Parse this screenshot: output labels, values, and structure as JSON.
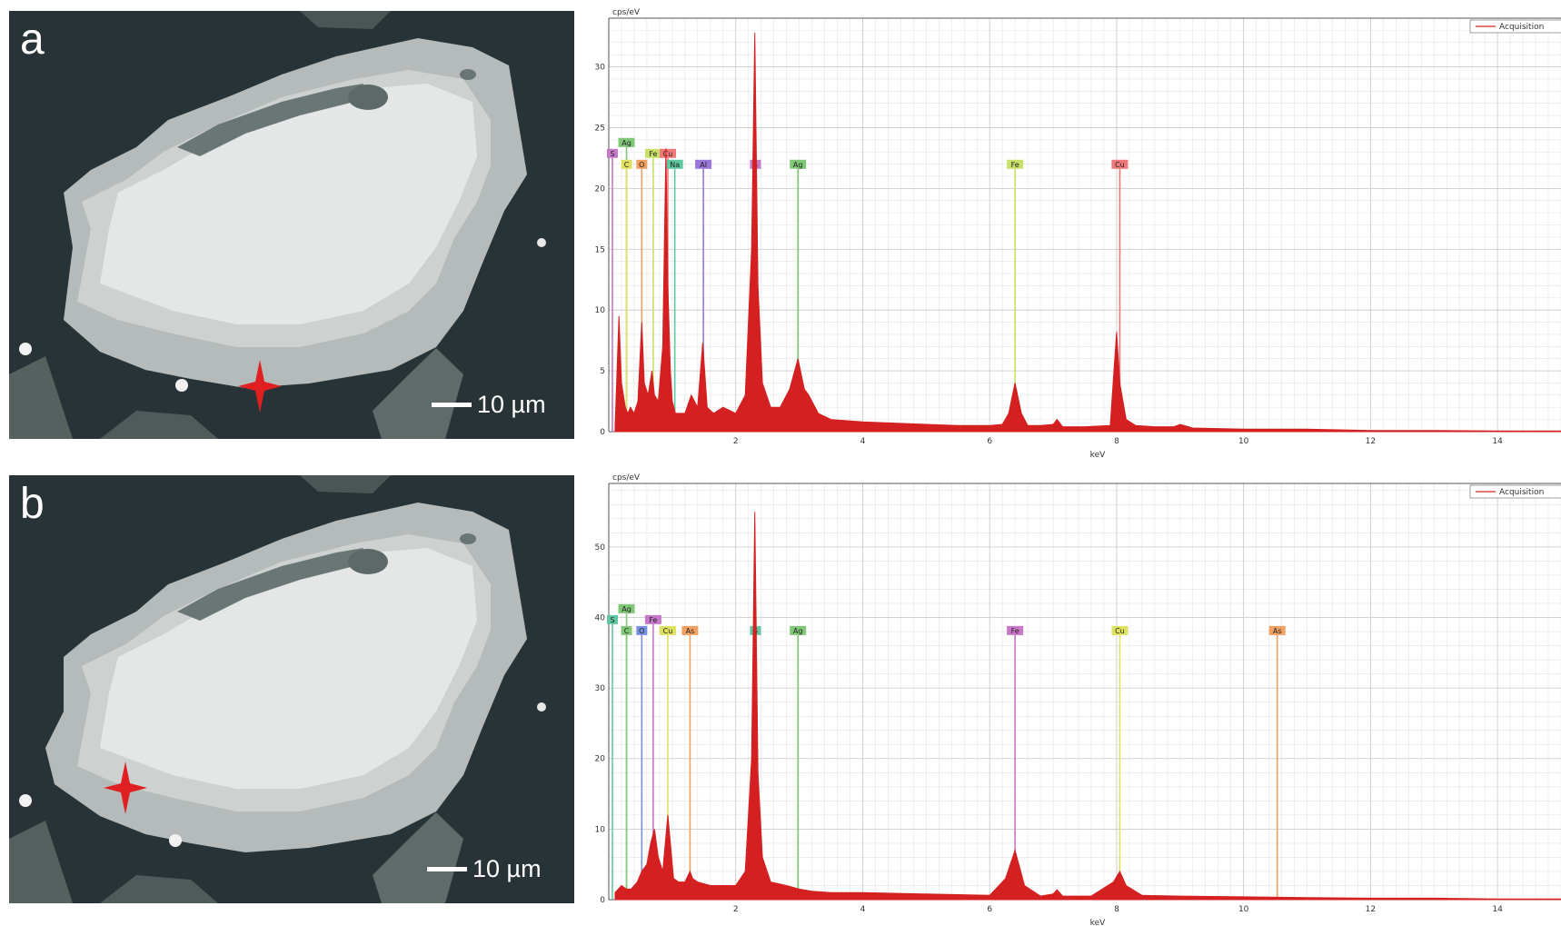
{
  "panels": [
    {
      "letter": "a",
      "scale_bar": "10 µm",
      "marker": "red-star"
    },
    {
      "letter": "b",
      "scale_bar": "10 µm",
      "marker": "red-star"
    }
  ],
  "chart_data": [
    {
      "type": "line",
      "title": "",
      "xlabel": "keV",
      "ylabel": "cps/eV",
      "xlim": [
        0,
        15
      ],
      "ylim": [
        0,
        34
      ],
      "xticks": [
        2,
        4,
        6,
        8,
        10,
        12,
        14
      ],
      "yticks": [
        0,
        5,
        10,
        15,
        20,
        25,
        30
      ],
      "grid": true,
      "legend": {
        "position": "top-right",
        "entries": [
          "Acquisition"
        ]
      },
      "series": [
        {
          "name": "Acquisition",
          "color": "#d42020",
          "x": [
            0.1,
            0.16,
            0.2,
            0.26,
            0.3,
            0.34,
            0.4,
            0.46,
            0.52,
            0.56,
            0.62,
            0.68,
            0.72,
            0.78,
            0.85,
            0.9,
            0.93,
            0.97,
            1.0,
            1.05,
            1.1,
            1.2,
            1.3,
            1.4,
            1.48,
            1.55,
            1.65,
            1.8,
            2.0,
            2.15,
            2.25,
            2.3,
            2.35,
            2.42,
            2.55,
            2.7,
            2.85,
            2.98,
            3.08,
            3.15,
            3.3,
            3.5,
            4.0,
            4.5,
            5.0,
            5.5,
            6.0,
            6.2,
            6.3,
            6.4,
            6.5,
            6.6,
            6.8,
            7.0,
            7.06,
            7.15,
            7.5,
            7.9,
            8.0,
            8.05,
            8.15,
            8.3,
            8.6,
            8.9,
            9.0,
            9.2,
            10.0,
            11.0,
            12.0,
            13.0,
            14.0,
            15.0
          ],
          "y": [
            0.5,
            9.5,
            4.0,
            2.0,
            1.5,
            2.0,
            1.5,
            2.5,
            9.0,
            4.0,
            3.0,
            5.0,
            3.0,
            2.5,
            7.0,
            23.3,
            12.0,
            5.0,
            2.5,
            1.5,
            1.5,
            1.5,
            3.0,
            2.0,
            7.3,
            2.0,
            1.5,
            2.0,
            1.5,
            3.0,
            15.0,
            32.8,
            12.0,
            4.0,
            2.0,
            2.0,
            3.5,
            6.0,
            3.5,
            3.0,
            1.5,
            1.0,
            0.8,
            0.7,
            0.6,
            0.5,
            0.5,
            0.6,
            1.5,
            4.0,
            1.5,
            0.5,
            0.5,
            0.6,
            1.0,
            0.4,
            0.4,
            0.5,
            8.2,
            4.0,
            1.0,
            0.5,
            0.4,
            0.4,
            0.6,
            0.3,
            0.2,
            0.2,
            0.1,
            0.1,
            0.05,
            0.05
          ]
        }
      ],
      "element_markers": [
        {
          "label": "S",
          "x": 0.0,
          "color": "#c878c8",
          "row": 2
        },
        {
          "label": "Ag",
          "x": 0.28,
          "color": "#80c878",
          "row": 1
        },
        {
          "label": "C",
          "x": 0.28,
          "color": "#e0e060",
          "row": 3
        },
        {
          "label": "O",
          "x": 0.52,
          "color": "#f0a060",
          "row": 3
        },
        {
          "label": "Fe",
          "x": 0.7,
          "color": "#c8e068",
          "row": 2
        },
        {
          "label": "Cu",
          "x": 0.93,
          "color": "#f07878",
          "row": 2
        },
        {
          "label": "Na",
          "x": 1.04,
          "color": "#60c8a0",
          "row": 3
        },
        {
          "label": "Al",
          "x": 1.49,
          "color": "#9878d8",
          "row": 3
        },
        {
          "label": "S",
          "x": 2.31,
          "color": "#c878c8",
          "row": 3
        },
        {
          "label": "Ag",
          "x": 2.98,
          "color": "#80c878",
          "row": 3
        },
        {
          "label": "Fe",
          "x": 6.4,
          "color": "#c8e068",
          "row": 3
        },
        {
          "label": "Cu",
          "x": 8.05,
          "color": "#f07878",
          "row": 3
        }
      ]
    },
    {
      "type": "line",
      "title": "",
      "xlabel": "keV",
      "ylabel": "cps/eV",
      "xlim": [
        0,
        15
      ],
      "ylim": [
        0,
        59
      ],
      "xticks": [
        2,
        4,
        6,
        8,
        10,
        12,
        14
      ],
      "yticks": [
        0,
        10,
        20,
        30,
        40,
        50
      ],
      "grid": true,
      "legend": {
        "position": "top-right",
        "entries": [
          "Acquisition"
        ]
      },
      "series": [
        {
          "name": "Acquisition",
          "color": "#d42020",
          "x": [
            0.1,
            0.2,
            0.28,
            0.35,
            0.45,
            0.52,
            0.6,
            0.66,
            0.72,
            0.78,
            0.85,
            0.93,
            0.97,
            1.02,
            1.1,
            1.2,
            1.28,
            1.32,
            1.4,
            1.6,
            1.8,
            2.0,
            2.15,
            2.25,
            2.3,
            2.35,
            2.42,
            2.55,
            2.8,
            3.0,
            3.2,
            3.5,
            4.0,
            5.0,
            6.0,
            6.25,
            6.4,
            6.55,
            6.8,
            7.0,
            7.06,
            7.15,
            7.6,
            7.95,
            8.05,
            8.15,
            8.4,
            9.0,
            10.0,
            11.0,
            12.0,
            13.0,
            14.0,
            15.0
          ],
          "y": [
            1.0,
            2.0,
            1.5,
            1.5,
            2.5,
            4.0,
            5.0,
            8.0,
            10.0,
            6.0,
            4.0,
            12.0,
            8.0,
            3.0,
            2.5,
            2.5,
            4.0,
            3.0,
            2.5,
            2.0,
            2.0,
            2.0,
            4.0,
            20.0,
            55.0,
            18.0,
            6.0,
            2.5,
            2.0,
            1.5,
            1.2,
            1.0,
            1.0,
            0.8,
            0.6,
            3.0,
            7.0,
            2.0,
            0.5,
            0.8,
            1.4,
            0.5,
            0.5,
            2.5,
            4.0,
            2.0,
            0.6,
            0.5,
            0.4,
            0.3,
            0.2,
            0.2,
            0.1,
            0.1
          ]
        }
      ],
      "element_markers": [
        {
          "label": "S",
          "x": 0.0,
          "color": "#60c8a0",
          "row": 2
        },
        {
          "label": "Ag",
          "x": 0.28,
          "color": "#80c878",
          "row": 1
        },
        {
          "label": "C",
          "x": 0.28,
          "color": "#80c878",
          "row": 3
        },
        {
          "label": "O",
          "x": 0.52,
          "color": "#7890e0",
          "row": 3
        },
        {
          "label": "Fe",
          "x": 0.7,
          "color": "#c878c8",
          "row": 2
        },
        {
          "label": "Cu",
          "x": 0.93,
          "color": "#e0e060",
          "row": 3
        },
        {
          "label": "As",
          "x": 1.28,
          "color": "#f0a060",
          "row": 3
        },
        {
          "label": "S",
          "x": 2.31,
          "color": "#60c8a0",
          "row": 3
        },
        {
          "label": "Ag",
          "x": 2.98,
          "color": "#80c878",
          "row": 3
        },
        {
          "label": "Fe",
          "x": 6.4,
          "color": "#c878c8",
          "row": 3
        },
        {
          "label": "Cu",
          "x": 8.05,
          "color": "#e0e060",
          "row": 3
        },
        {
          "label": "As",
          "x": 10.53,
          "color": "#f0a060",
          "row": 3
        }
      ]
    }
  ]
}
